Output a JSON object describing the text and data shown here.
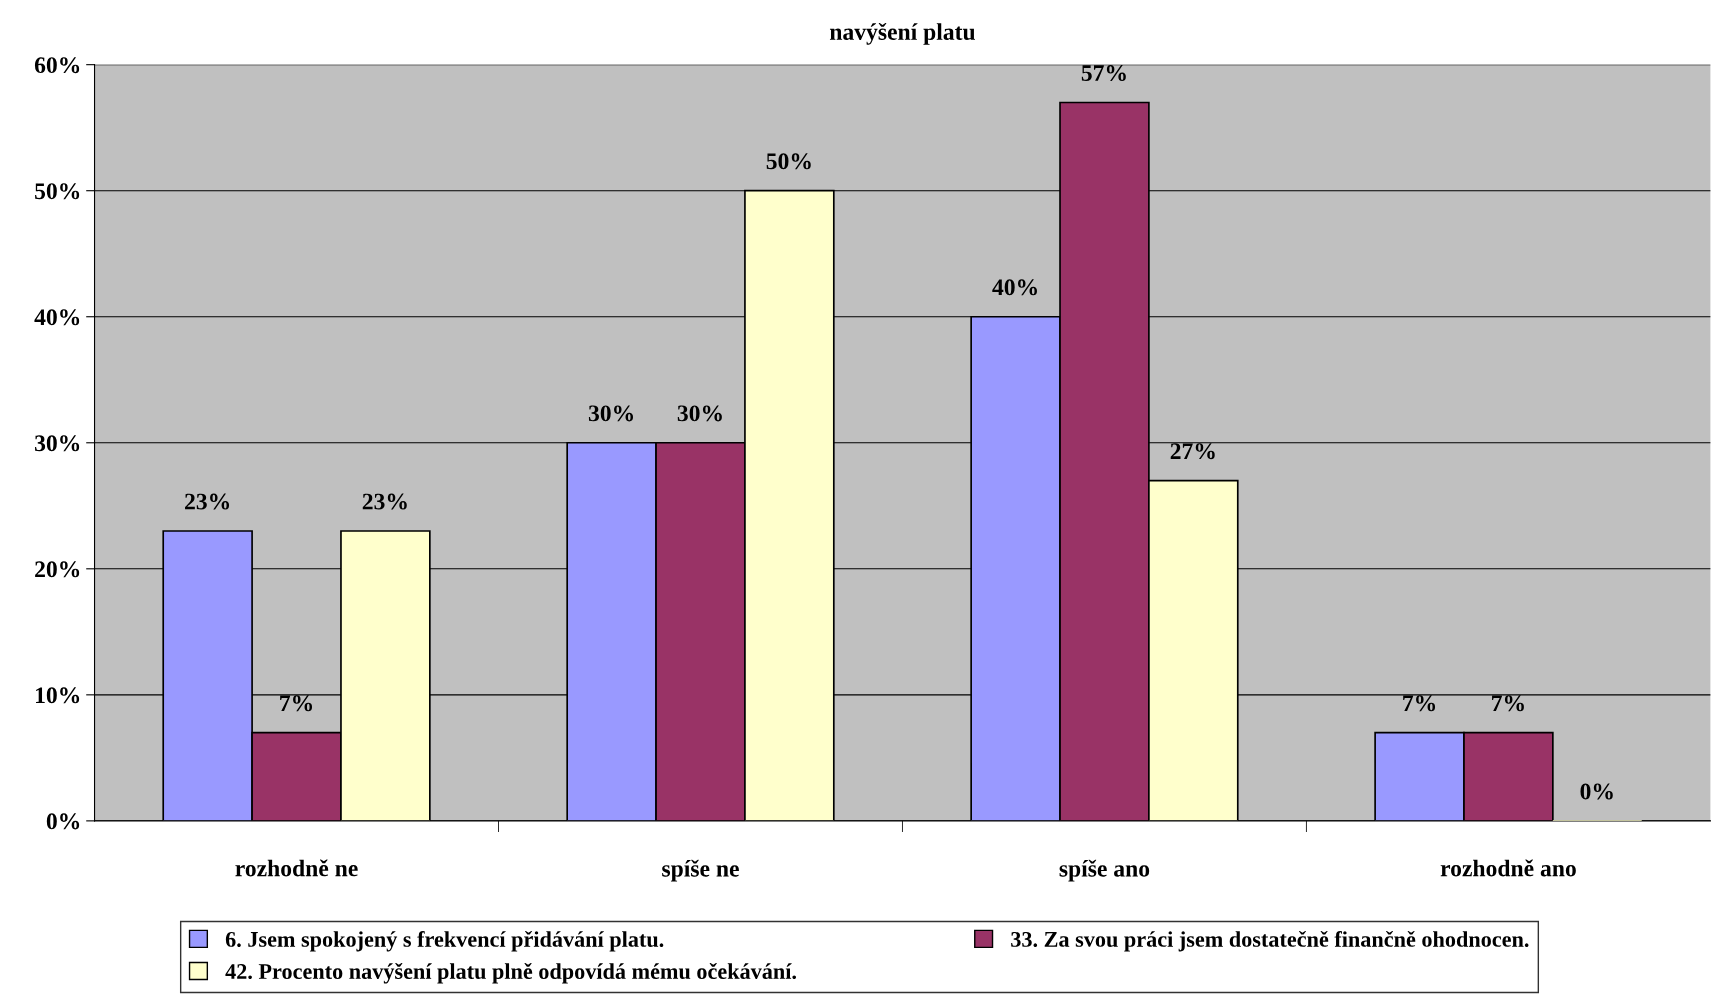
{
  "chart_data": {
    "type": "bar",
    "title": "navýšení platu",
    "categories": [
      "rozhodně ne",
      "spíše ne",
      "spíše ano",
      "rozhodně ano"
    ],
    "series": [
      {
        "name": "6. Jsem spokojený s frekvencí přidávání platu.",
        "color": "#9999ff",
        "values": [
          23,
          30,
          40,
          7
        ],
        "value_labels": [
          "23%",
          "30%",
          "40%",
          "7%"
        ]
      },
      {
        "name": "33. Za svou práci jsem dostatečně finančně ohodnocen.",
        "color": "#993366",
        "values": [
          7,
          30,
          57,
          7
        ],
        "value_labels": [
          "7%",
          "30%",
          "57%",
          "7%"
        ]
      },
      {
        "name": "42. Procento navýšení platu plně odpovídá mému očekávání.",
        "color": "#ffffcc",
        "values": [
          23,
          50,
          27,
          0
        ],
        "value_labels": [
          "23%",
          "50%",
          "27%",
          "0%"
        ]
      }
    ],
    "ylim": [
      0,
      60
    ],
    "yticks": [
      {
        "value": 0,
        "label": "0%"
      },
      {
        "value": 10,
        "label": "10%"
      },
      {
        "value": 20,
        "label": "20%"
      },
      {
        "value": 30,
        "label": "30%"
      },
      {
        "value": 40,
        "label": "40%"
      },
      {
        "value": 50,
        "label": "50%"
      },
      {
        "value": 60,
        "label": "60%"
      }
    ],
    "grid": "y",
    "legend": "bottom"
  }
}
